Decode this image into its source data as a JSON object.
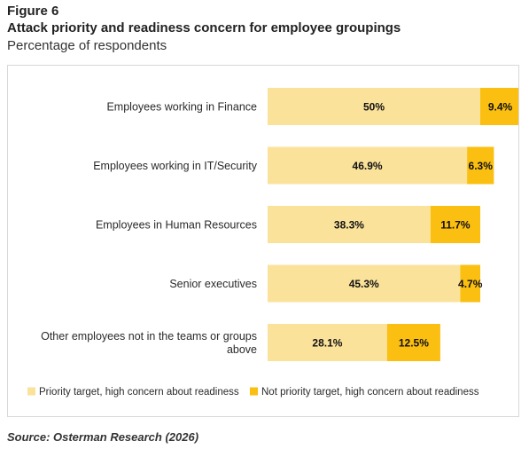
{
  "figure": {
    "label": "Figure 6",
    "title": "Attack priority and readiness concern for employee groupings",
    "subtitle": "Percentage of respondents",
    "source": "Source: Osterman Research (2026)"
  },
  "chart_data": {
    "type": "bar",
    "orientation": "horizontal",
    "stacked": true,
    "categories": [
      "Employees working in Finance",
      "Employees working in IT/Security",
      "Employees in Human Resources",
      "Senior executives",
      "Other employees not in the teams or groups above"
    ],
    "category_lines": [
      [
        "Employees working in Finance"
      ],
      [
        "Employees working in IT/Security"
      ],
      [
        "Employees in Human Resources"
      ],
      [
        "Senior executives"
      ],
      [
        "Other employees not in the teams or groups",
        "above"
      ]
    ],
    "series": [
      {
        "name": "Priority target, high concern about readiness",
        "color": "#fbe29a",
        "values": [
          50,
          46.9,
          38.3,
          45.3,
          28.1
        ],
        "labels": [
          "50%",
          "46.9%",
          "38.3%",
          "45.3%",
          "28.1%"
        ]
      },
      {
        "name": "Not priority target, high concern about readiness",
        "color": "#fbbf11",
        "values": [
          9.4,
          6.3,
          11.7,
          4.7,
          12.5
        ],
        "labels": [
          "9.4%",
          "6.3%",
          "11.7%",
          "4.7%",
          "12.5%"
        ]
      }
    ],
    "xlim": [
      0,
      60
    ],
    "grid": false,
    "legend": "bottom"
  }
}
